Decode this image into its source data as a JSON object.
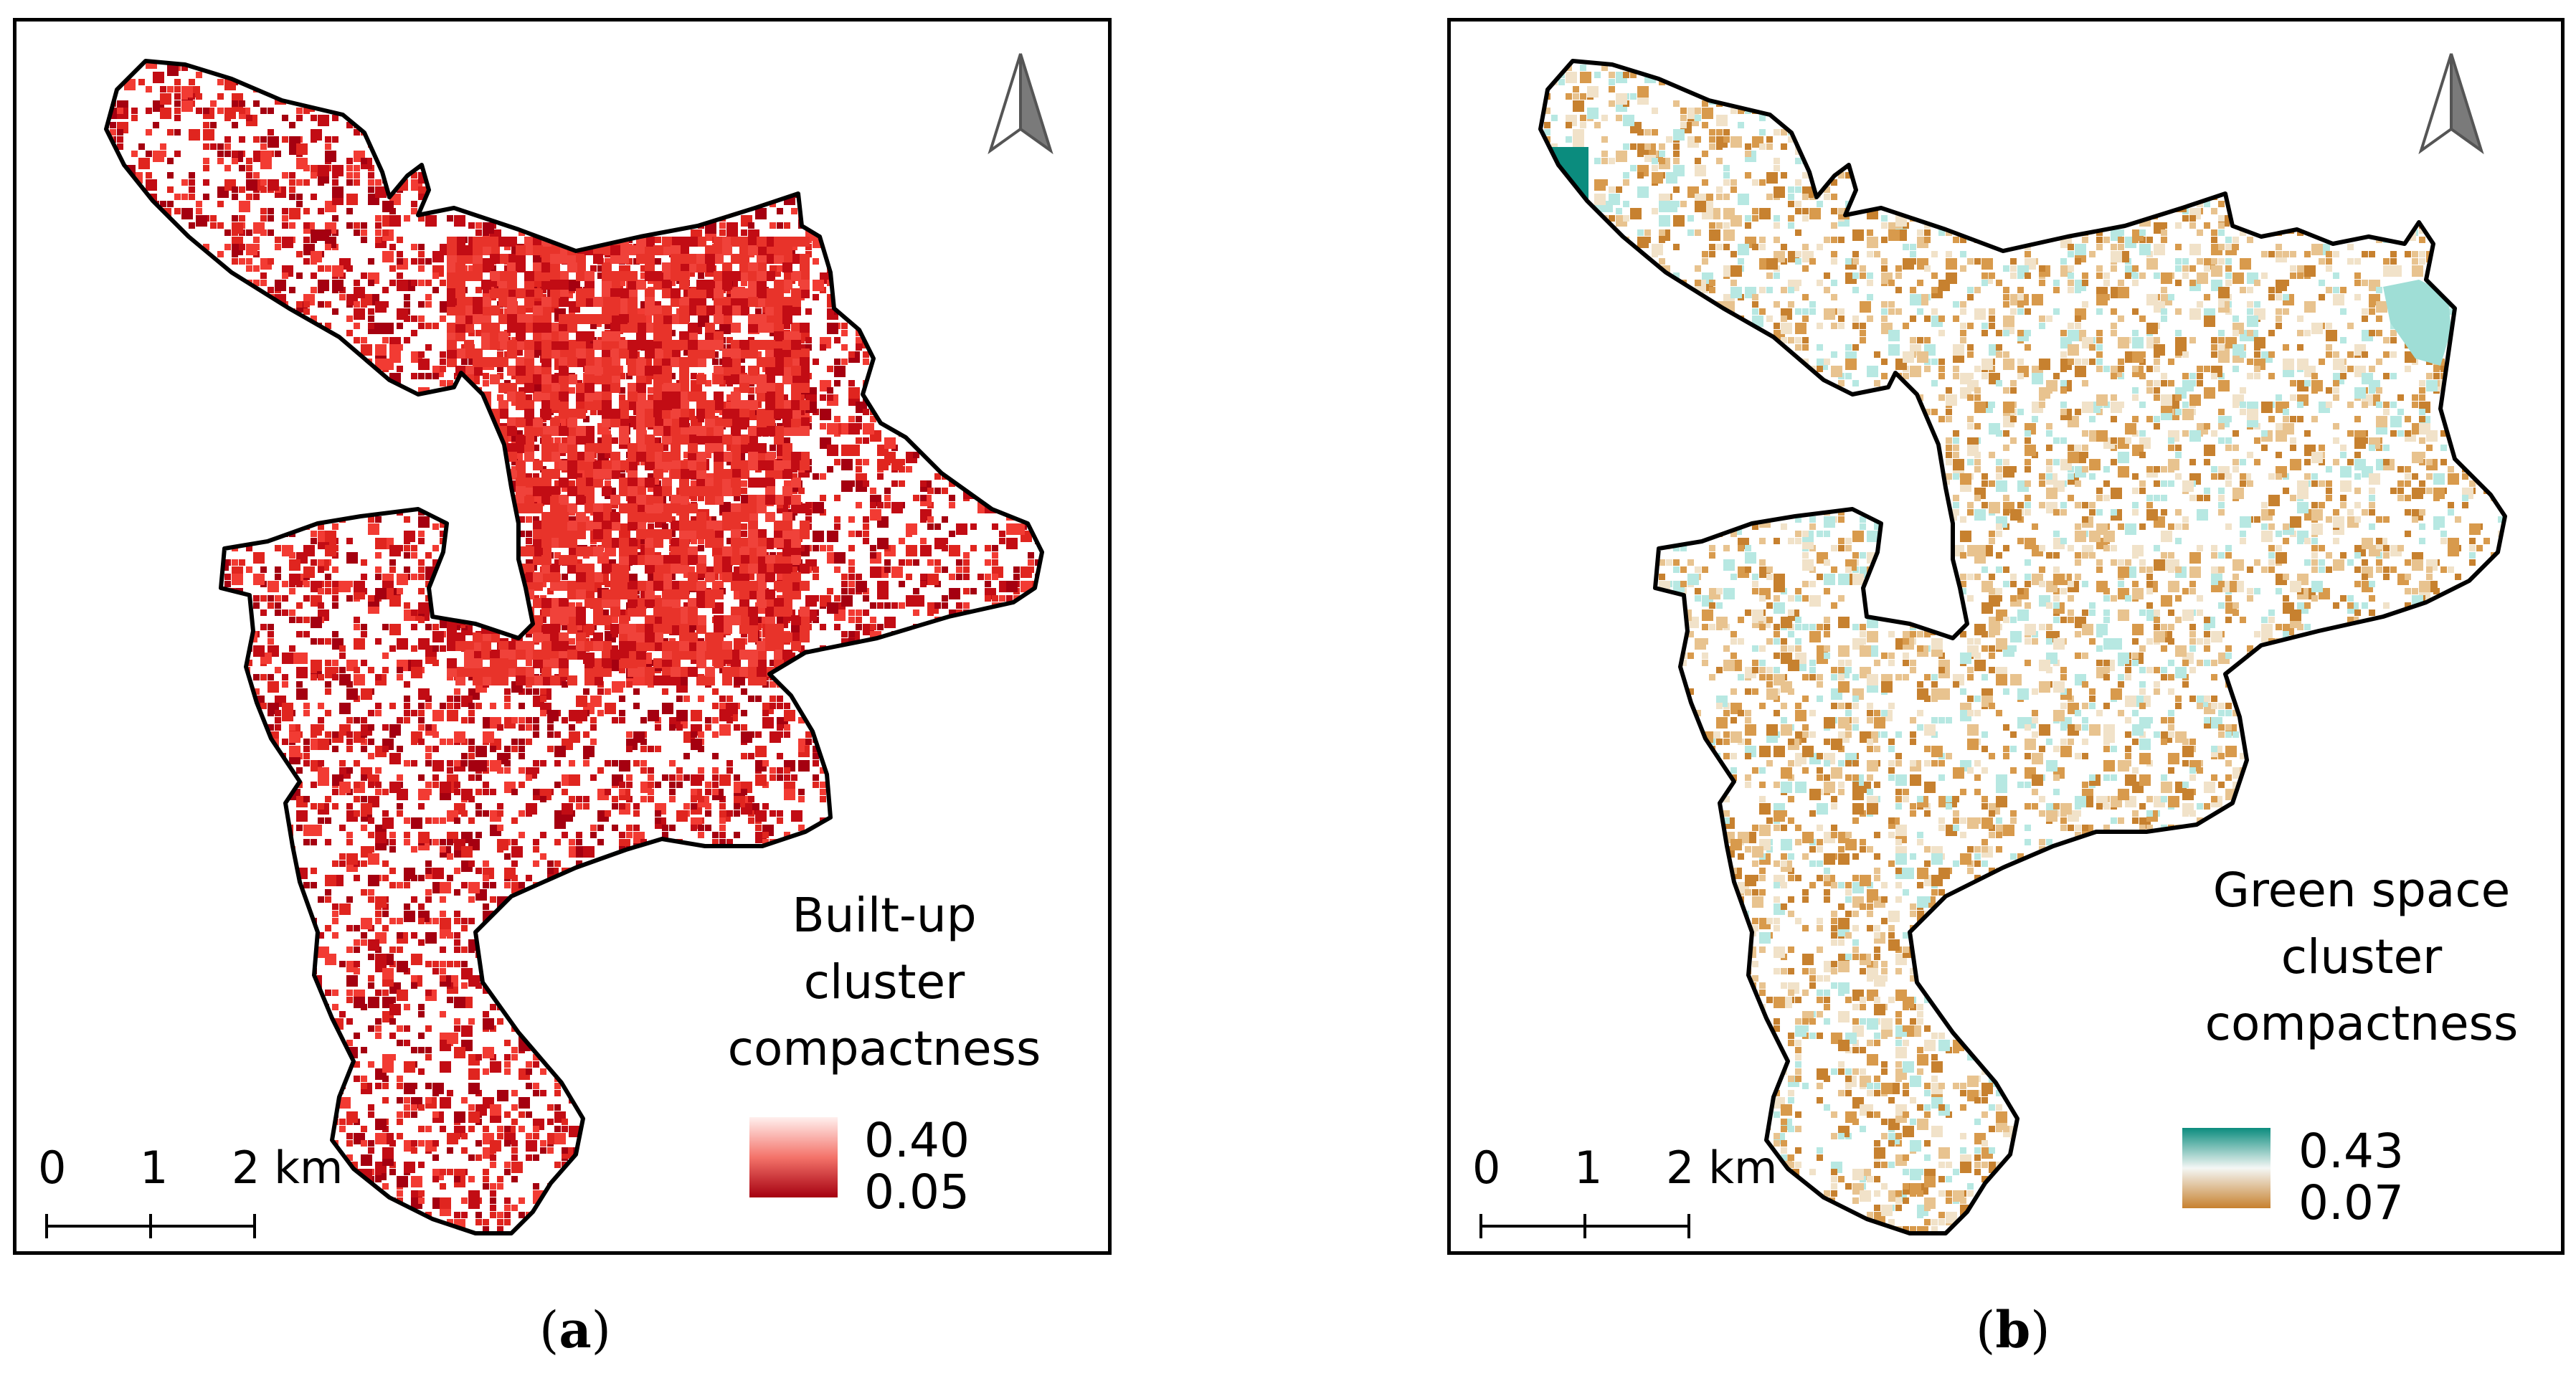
{
  "figure": {
    "panels": [
      {
        "id": "a",
        "label_open": "(",
        "label_letter": "a",
        "label_close": ")",
        "legend_title": [
          "Built-up",
          "cluster",
          "compactness"
        ],
        "legend_max": "0.40",
        "legend_min": "0.05",
        "ramp_colors": [
          "#fff0ee",
          "#f4736a",
          "#a50010"
        ],
        "point_colors": [
          "#a50010",
          "#c20c14",
          "#e0251f",
          "#f23b33"
        ]
      },
      {
        "id": "b",
        "label_open": "(",
        "label_letter": "b",
        "label_close": ")",
        "legend_title": [
          "Green space",
          "cluster",
          "compactness"
        ],
        "legend_max": "0.43",
        "legend_min": "0.07",
        "ramp_colors": [
          "#0b8c7e",
          "#f4f7f5",
          "#c7812f"
        ],
        "point_colors": [
          "#c7812f",
          "#d89a4c",
          "#e8c38f",
          "#f1e2c9",
          "#b7e8e2"
        ]
      }
    ],
    "scale_bar": {
      "ticks": [
        "0",
        "1",
        "2 km"
      ]
    }
  }
}
